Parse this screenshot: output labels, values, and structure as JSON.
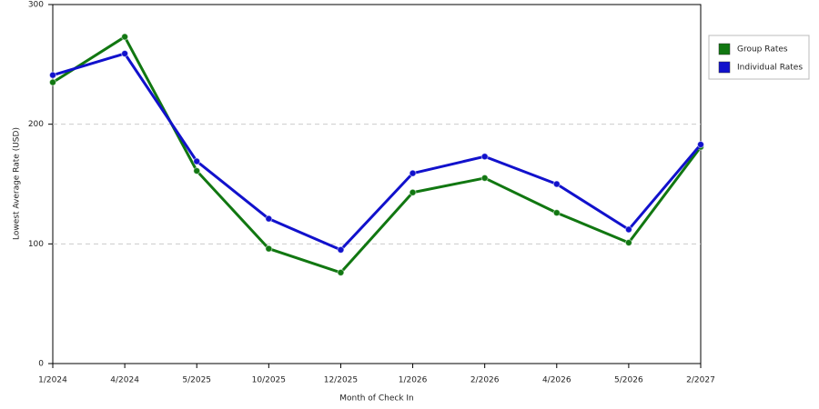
{
  "chart_data": {
    "type": "line",
    "x_label": "Month of Check In",
    "y_label": "Lowest Average Rate (USD)",
    "categories": [
      "1/2024",
      "4/2024",
      "5/2025",
      "10/2025",
      "12/2025",
      "1/2026",
      "2/2026",
      "4/2026",
      "5/2026",
      "2/2027"
    ],
    "series": [
      {
        "name": "Group Rates",
        "color": "#117711",
        "values": [
          235,
          273,
          161,
          96,
          76,
          143,
          155,
          126,
          101,
          181
        ]
      },
      {
        "name": "Individual Rates",
        "color": "#1111cc",
        "values": [
          241,
          259,
          169,
          121,
          95,
          159,
          173,
          150,
          112,
          183
        ]
      }
    ],
    "ylim": [
      0,
      300
    ],
    "yticks": [
      0,
      100,
      200,
      300
    ],
    "grid": true,
    "legend": "right"
  }
}
